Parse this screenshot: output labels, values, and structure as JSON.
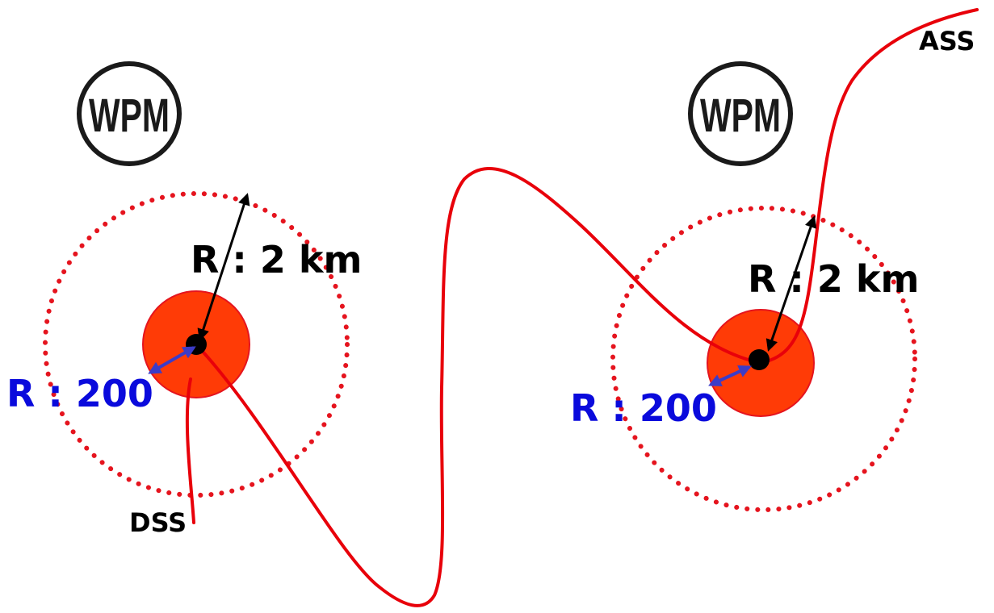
{
  "waypoints": [
    {
      "logo_text": "WPM",
      "outer_radius_label": "R : 2 km",
      "inner_radius_label": "R : 200"
    },
    {
      "logo_text": "WPM",
      "outer_radius_label": "R : 2 km",
      "inner_radius_label": "R : 200"
    }
  ],
  "start_label": "DSS",
  "end_label": "ASS",
  "colors": {
    "route": "#e8000a",
    "outer_circle": "#e5141e",
    "inner_zone": "#ff3b06",
    "inner_radius_arrow": "#3c3cc8",
    "outer_radius_arrow": "#000000",
    "inner_label": "#0a0adc"
  }
}
